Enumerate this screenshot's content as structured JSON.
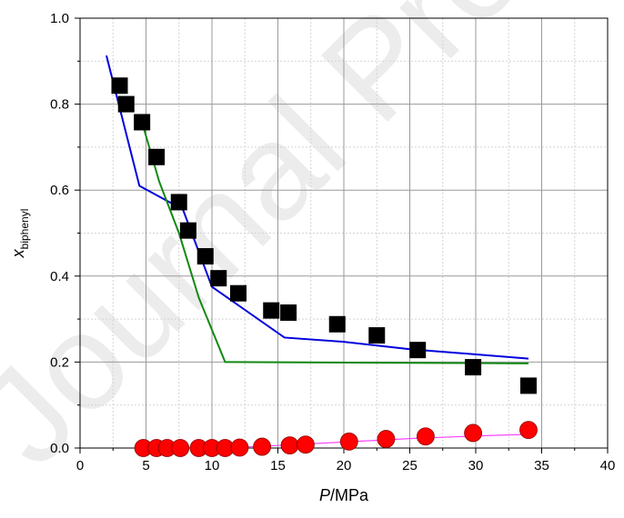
{
  "watermark": "Journal Pre-proof",
  "chart_data": {
    "type": "scatter",
    "title": "",
    "xlabel_italic": "P",
    "xlabel_rest": "/MPa",
    "ylabel_base": "x",
    "ylabel_sub": "biphenyl",
    "xlim": [
      0,
      40
    ],
    "ylim": [
      0,
      1.0
    ],
    "xticks": [
      "0",
      "5",
      "10",
      "15",
      "20",
      "25",
      "30",
      "35",
      "40"
    ],
    "yticks": [
      "0.0",
      "0.2",
      "0.4",
      "0.6",
      "0.8",
      "1.0"
    ],
    "grid": true,
    "colors": {
      "squares": "#000000",
      "circles": "#ff0000",
      "blue_line": "#0000dd",
      "green_line": "#118811",
      "magenta_line": "#ff44ff"
    },
    "series": [
      {
        "marker": "square",
        "x": [
          3.0,
          3.5,
          4.7,
          5.8,
          7.5,
          8.2,
          9.5,
          10.5,
          12.0,
          14.5,
          15.8,
          19.5,
          22.5,
          25.6,
          29.8,
          34.0
        ],
        "y": [
          0.843,
          0.8,
          0.758,
          0.677,
          0.572,
          0.506,
          0.446,
          0.395,
          0.36,
          0.32,
          0.315,
          0.288,
          0.262,
          0.228,
          0.188,
          0.145
        ]
      },
      {
        "marker": "circle",
        "x": [
          4.8,
          5.8,
          6.6,
          7.6,
          9.0,
          10.0,
          11.0,
          12.1,
          13.8,
          15.9,
          17.1,
          20.4,
          23.2,
          26.2,
          29.8,
          34.0
        ],
        "y": [
          0.0,
          0.0,
          0.0,
          0.0,
          0.0,
          0.0,
          0.0,
          0.001,
          0.003,
          0.006,
          0.008,
          0.015,
          0.021,
          0.027,
          0.035,
          0.042
        ]
      },
      {
        "marker": "line-blue",
        "x": [
          2.0,
          4.5,
          7.8,
          10.0,
          15.5,
          20.0,
          25.0,
          34.0
        ],
        "y": [
          0.913,
          0.61,
          0.555,
          0.375,
          0.257,
          0.247,
          0.23,
          0.208
        ]
      },
      {
        "marker": "line-green",
        "x": [
          4.7,
          6.0,
          7.5,
          9.0,
          11.0,
          34.0
        ],
        "y": [
          0.758,
          0.62,
          0.5,
          0.35,
          0.2,
          0.197
        ]
      },
      {
        "marker": "line-magenta",
        "x": [
          10.0,
          12.0,
          15.0,
          20.0,
          25.0,
          30.0,
          34.0
        ],
        "y": [
          0.0,
          0.002,
          0.006,
          0.014,
          0.022,
          0.028,
          0.032
        ]
      }
    ]
  }
}
